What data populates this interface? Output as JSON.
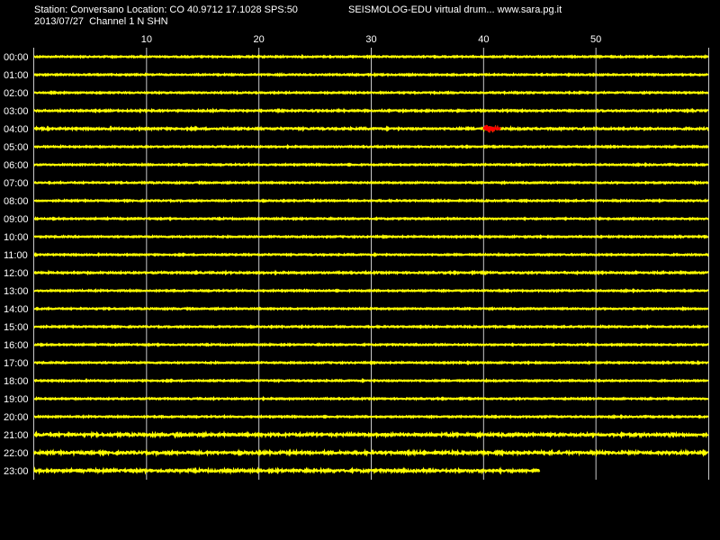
{
  "header": {
    "station_line": "Station: Conversano Location: CO 40.9712 17.1028 SPS:50",
    "brand": "SEISMOLOG-EDU virtual drum... www.sara.pg.it",
    "date_line": "2013/07/27  Channel 1 N SHN"
  },
  "chart_data": {
    "type": "line",
    "title": "",
    "xlabel": "",
    "ylabel": "",
    "x_range": [
      0,
      60
    ],
    "x_ticks": [
      10,
      20,
      30,
      40,
      50
    ],
    "grid": true,
    "rows": [
      "00:00",
      "01:00",
      "02:00",
      "03:00",
      "04:00",
      "05:00",
      "06:00",
      "07:00",
      "08:00",
      "09:00",
      "10:00",
      "11:00",
      "12:00",
      "13:00",
      "14:00",
      "15:00",
      "16:00",
      "17:00",
      "18:00",
      "19:00",
      "20:00",
      "21:00",
      "22:00",
      "23:00"
    ],
    "trace_end_minute": [
      60,
      60,
      60,
      60,
      60,
      60,
      60,
      60,
      60,
      60,
      60,
      60,
      60,
      60,
      60,
      60,
      60,
      60,
      60,
      60,
      60,
      60,
      60,
      45
    ],
    "noise_level": [
      0.6,
      0.6,
      0.6,
      0.7,
      0.8,
      0.6,
      0.6,
      0.6,
      0.6,
      0.6,
      0.6,
      0.6,
      0.7,
      0.6,
      0.6,
      0.6,
      0.6,
      0.6,
      0.6,
      0.6,
      0.6,
      1.1,
      1.1,
      1.1
    ],
    "events": [
      {
        "row": "04:00",
        "start_minute": 40.0,
        "end_minute": 43.0,
        "peak": 6,
        "color": "#ff0000"
      },
      {
        "row": "12:00",
        "start_minute": 14.3,
        "end_minute": 15.5,
        "peak": 2,
        "color": "#ffff00"
      },
      {
        "row": "12:00",
        "start_minute": 40.0,
        "end_minute": 41.5,
        "peak": 2,
        "color": "#ffff00"
      },
      {
        "row": "12:00",
        "start_minute": 53.5,
        "end_minute": 54.8,
        "peak": 1.5,
        "color": "#ffff00"
      }
    ],
    "colors": {
      "trace": "#ffff00",
      "event": "#ff0000",
      "grid": "#c8c8c8",
      "background": "#000000",
      "text": "#ffffff"
    }
  }
}
